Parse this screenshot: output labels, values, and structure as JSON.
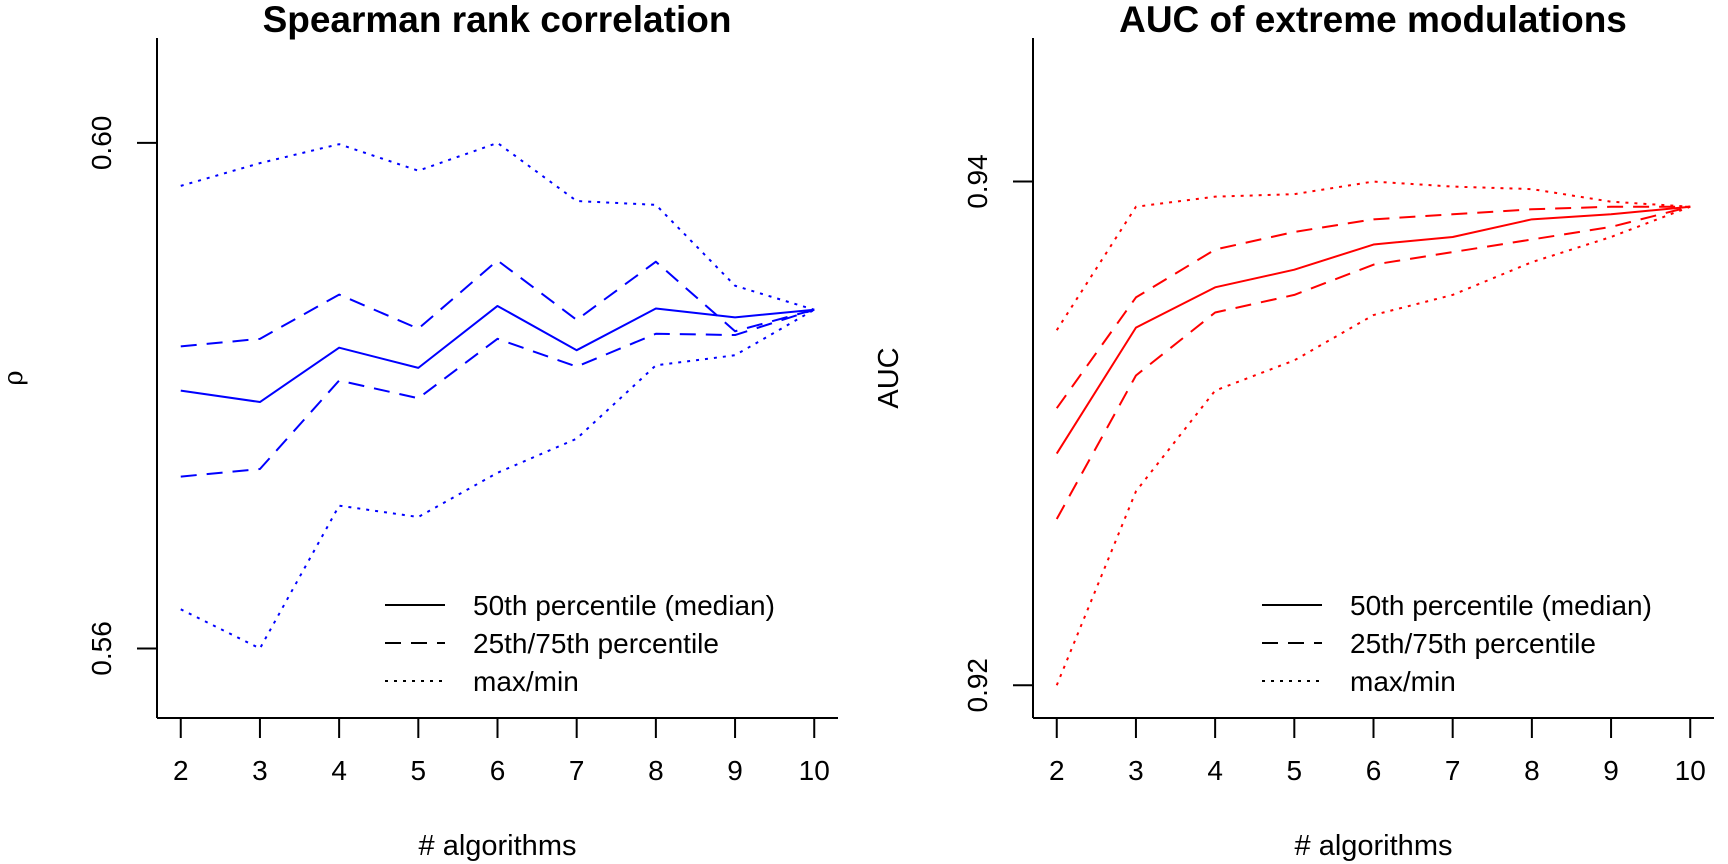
{
  "chart_data": [
    {
      "type": "line",
      "title": "Spearman rank correlation",
      "xlabel": "# algorithms",
      "ylabel": "ρ",
      "x": [
        2,
        3,
        4,
        5,
        6,
        7,
        8,
        9,
        10
      ],
      "xticks": [
        "2",
        "3",
        "4",
        "5",
        "6",
        "7",
        "8",
        "9",
        "10"
      ],
      "xlim": [
        1.7,
        10.3
      ],
      "yticks": [
        "0.56",
        "0.60"
      ],
      "ytick_values": [
        0.56,
        0.6
      ],
      "ylim": [
        0.5545,
        0.6083
      ],
      "color": "#0000ff",
      "grid": false,
      "legend_position": "bottom-right",
      "series": [
        {
          "name": "max/min",
          "style": "dotted",
          "values": [
            0.5966,
            0.5984,
            0.5999,
            0.5978,
            0.6,
            0.5954,
            0.5951,
            0.5887,
            0.5868
          ]
        },
        {
          "name": "25th/75th percentile",
          "style": "dashed",
          "values": [
            0.5839,
            0.5845,
            0.588,
            0.5853,
            0.5907,
            0.586,
            0.5906,
            0.5851,
            0.5868
          ]
        },
        {
          "name": "50th percentile (median)",
          "style": "solid",
          "values": [
            0.5804,
            0.5795,
            0.5838,
            0.5822,
            0.5871,
            0.5836,
            0.5869,
            0.5862,
            0.5868
          ]
        },
        {
          "name": "25th/75th percentile",
          "style": "dashed",
          "values": [
            0.5736,
            0.5742,
            0.5812,
            0.5798,
            0.5845,
            0.5823,
            0.5849,
            0.5848,
            0.5868
          ]
        },
        {
          "name": "max/min",
          "style": "dotted",
          "values": [
            0.5631,
            0.56,
            0.5713,
            0.5704,
            0.5739,
            0.5766,
            0.5824,
            0.5832,
            0.5868
          ]
        }
      ],
      "legend": [
        {
          "label": "50th percentile (median)",
          "style": "solid"
        },
        {
          "label": "25th/75th percentile",
          "style": "dashed"
        },
        {
          "label": "max/min",
          "style": "dotted"
        }
      ]
    },
    {
      "type": "line",
      "title": "AUC of extreme modulations",
      "xlabel": "# algorithms",
      "ylabel": "AUC",
      "x": [
        2,
        3,
        4,
        5,
        6,
        7,
        8,
        9,
        10
      ],
      "xticks": [
        "2",
        "3",
        "4",
        "5",
        "6",
        "7",
        "8",
        "9",
        "10"
      ],
      "xlim": [
        1.7,
        10.3
      ],
      "yticks": [
        "0.92",
        "0.94"
      ],
      "ytick_values": [
        0.92,
        0.94
      ],
      "ylim": [
        0.9187,
        0.9457
      ],
      "color": "#ff0000",
      "grid": false,
      "legend_position": "bottom-right",
      "series": [
        {
          "name": "max/min",
          "style": "dotted",
          "values": [
            0.9341,
            0.939,
            0.9394,
            0.9395,
            0.94,
            0.9398,
            0.9397,
            0.9392,
            0.939
          ]
        },
        {
          "name": "25th/75th percentile",
          "style": "dashed",
          "values": [
            0.931,
            0.9354,
            0.9373,
            0.938,
            0.9385,
            0.9387,
            0.9389,
            0.939,
            0.939
          ]
        },
        {
          "name": "50th percentile (median)",
          "style": "solid",
          "values": [
            0.9292,
            0.9342,
            0.9358,
            0.9365,
            0.9375,
            0.9378,
            0.9385,
            0.9387,
            0.939
          ]
        },
        {
          "name": "25th/75th percentile",
          "style": "dashed",
          "values": [
            0.9266,
            0.9323,
            0.9348,
            0.9355,
            0.9367,
            0.9372,
            0.9377,
            0.9382,
            0.939
          ]
        },
        {
          "name": "max/min",
          "style": "dotted",
          "values": [
            0.92,
            0.9277,
            0.9317,
            0.9329,
            0.9347,
            0.9355,
            0.9368,
            0.9378,
            0.939
          ]
        }
      ],
      "legend": [
        {
          "label": "50th percentile (median)",
          "style": "solid"
        },
        {
          "label": "25th/75th percentile",
          "style": "dashed"
        },
        {
          "label": "max/min",
          "style": "dotted"
        }
      ]
    }
  ]
}
